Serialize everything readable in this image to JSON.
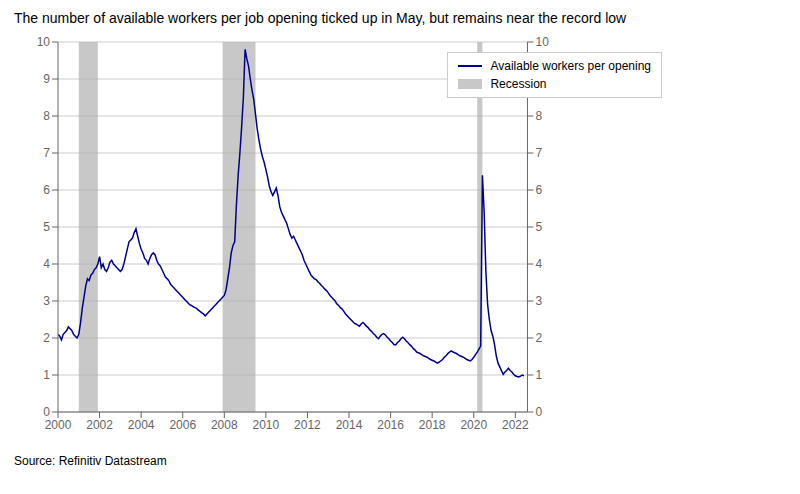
{
  "chart_data": {
    "type": "line",
    "title": "The number of available workers per job opening ticked up in May, but remains near the record low",
    "annotations": [
      "Source: Refinitiv Datastream"
    ],
    "x": [
      2000.0,
      2000.083,
      2000.167,
      2000.25,
      2000.333,
      2000.417,
      2000.5,
      2000.583,
      2000.667,
      2000.75,
      2000.833,
      2000.917,
      2001.0,
      2001.083,
      2001.167,
      2001.25,
      2001.333,
      2001.417,
      2001.5,
      2001.583,
      2001.667,
      2001.75,
      2001.833,
      2001.917,
      2002.0,
      2002.083,
      2002.167,
      2002.25,
      2002.333,
      2002.417,
      2002.5,
      2002.583,
      2002.667,
      2002.75,
      2002.833,
      2002.917,
      2003.0,
      2003.083,
      2003.167,
      2003.25,
      2003.333,
      2003.417,
      2003.5,
      2003.583,
      2003.667,
      2003.75,
      2003.833,
      2003.917,
      2004.0,
      2004.083,
      2004.167,
      2004.25,
      2004.333,
      2004.417,
      2004.5,
      2004.583,
      2004.667,
      2004.75,
      2004.833,
      2004.917,
      2005.0,
      2005.083,
      2005.167,
      2005.25,
      2005.333,
      2005.417,
      2005.5,
      2005.583,
      2005.667,
      2005.75,
      2005.833,
      2005.917,
      2006.0,
      2006.083,
      2006.167,
      2006.25,
      2006.333,
      2006.417,
      2006.5,
      2006.583,
      2006.667,
      2006.75,
      2006.833,
      2006.917,
      2007.0,
      2007.083,
      2007.167,
      2007.25,
      2007.333,
      2007.417,
      2007.5,
      2007.583,
      2007.667,
      2007.75,
      2007.833,
      2007.917,
      2008.0,
      2008.083,
      2008.167,
      2008.25,
      2008.333,
      2008.417,
      2008.5,
      2008.583,
      2008.667,
      2008.75,
      2008.833,
      2008.917,
      2009.0,
      2009.083,
      2009.167,
      2009.25,
      2009.333,
      2009.417,
      2009.5,
      2009.583,
      2009.667,
      2009.75,
      2009.833,
      2009.917,
      2010.0,
      2010.083,
      2010.167,
      2010.25,
      2010.333,
      2010.417,
      2010.5,
      2010.583,
      2010.667,
      2010.75,
      2010.833,
      2010.917,
      2011.0,
      2011.083,
      2011.167,
      2011.25,
      2011.333,
      2011.417,
      2011.5,
      2011.583,
      2011.667,
      2011.75,
      2011.833,
      2011.917,
      2012.0,
      2012.083,
      2012.167,
      2012.25,
      2012.333,
      2012.417,
      2012.5,
      2012.583,
      2012.667,
      2012.75,
      2012.833,
      2012.917,
      2013.0,
      2013.083,
      2013.167,
      2013.25,
      2013.333,
      2013.417,
      2013.5,
      2013.583,
      2013.667,
      2013.75,
      2013.833,
      2013.917,
      2014.0,
      2014.083,
      2014.167,
      2014.25,
      2014.333,
      2014.417,
      2014.5,
      2014.583,
      2014.667,
      2014.75,
      2014.833,
      2014.917,
      2015.0,
      2015.083,
      2015.167,
      2015.25,
      2015.333,
      2015.417,
      2015.5,
      2015.583,
      2015.667,
      2015.75,
      2015.833,
      2015.917,
      2016.0,
      2016.083,
      2016.167,
      2016.25,
      2016.333,
      2016.417,
      2016.5,
      2016.583,
      2016.667,
      2016.75,
      2016.833,
      2016.917,
      2017.0,
      2017.083,
      2017.167,
      2017.25,
      2017.333,
      2017.417,
      2017.5,
      2017.583,
      2017.667,
      2017.75,
      2017.833,
      2017.917,
      2018.0,
      2018.083,
      2018.167,
      2018.25,
      2018.333,
      2018.417,
      2018.5,
      2018.583,
      2018.667,
      2018.75,
      2018.833,
      2018.917,
      2019.0,
      2019.083,
      2019.167,
      2019.25,
      2019.333,
      2019.417,
      2019.5,
      2019.583,
      2019.667,
      2019.75,
      2019.833,
      2019.917,
      2020.0,
      2020.083,
      2020.167,
      2020.25,
      2020.333,
      2020.417,
      2020.5,
      2020.583,
      2020.667,
      2020.75,
      2020.833,
      2020.917,
      2021.0,
      2021.083,
      2021.167,
      2021.25,
      2021.333,
      2021.417,
      2021.5,
      2021.583,
      2021.667,
      2021.75,
      2021.833,
      2021.917,
      2022.0,
      2022.083,
      2022.167,
      2022.25,
      2022.333,
      2022.417
    ],
    "series": [
      {
        "name": "Available workers per opening",
        "color": "#00008B",
        "values": [
          2.1,
          2.05,
          1.95,
          2.1,
          2.15,
          2.2,
          2.3,
          2.25,
          2.2,
          2.1,
          2.05,
          2.0,
          2.1,
          2.4,
          2.8,
          3.1,
          3.4,
          3.6,
          3.55,
          3.7,
          3.75,
          3.85,
          3.9,
          4.0,
          4.2,
          3.9,
          4.0,
          3.85,
          3.8,
          3.9,
          4.05,
          4.1,
          4.0,
          3.95,
          3.9,
          3.85,
          3.8,
          3.85,
          4.0,
          4.2,
          4.4,
          4.6,
          4.65,
          4.7,
          4.85,
          4.95,
          4.75,
          4.55,
          4.4,
          4.3,
          4.15,
          4.1,
          4.0,
          4.15,
          4.25,
          4.3,
          4.25,
          4.1,
          4.0,
          3.95,
          3.85,
          3.75,
          3.65,
          3.6,
          3.55,
          3.45,
          3.4,
          3.35,
          3.3,
          3.25,
          3.2,
          3.15,
          3.1,
          3.05,
          3.0,
          2.95,
          2.9,
          2.88,
          2.85,
          2.82,
          2.8,
          2.75,
          2.72,
          2.68,
          2.65,
          2.6,
          2.65,
          2.7,
          2.75,
          2.8,
          2.85,
          2.9,
          2.95,
          3.0,
          3.05,
          3.1,
          3.15,
          3.3,
          3.6,
          3.9,
          4.3,
          4.5,
          4.6,
          5.6,
          6.4,
          7.0,
          7.7,
          8.5,
          9.8,
          9.55,
          9.35,
          9.0,
          8.7,
          8.45,
          8.05,
          7.65,
          7.35,
          7.1,
          6.9,
          6.75,
          6.55,
          6.35,
          6.1,
          5.95,
          5.85,
          5.95,
          6.05,
          5.85,
          5.55,
          5.4,
          5.3,
          5.2,
          5.1,
          4.95,
          4.8,
          4.7,
          4.75,
          4.65,
          4.55,
          4.45,
          4.35,
          4.25,
          4.1,
          4.0,
          3.9,
          3.8,
          3.7,
          3.65,
          3.6,
          3.58,
          3.52,
          3.48,
          3.42,
          3.38,
          3.32,
          3.28,
          3.22,
          3.15,
          3.1,
          3.05,
          3.0,
          2.92,
          2.88,
          2.82,
          2.78,
          2.72,
          2.65,
          2.6,
          2.55,
          2.5,
          2.45,
          2.4,
          2.38,
          2.35,
          2.32,
          2.38,
          2.42,
          2.38,
          2.32,
          2.28,
          2.22,
          2.18,
          2.12,
          2.08,
          2.02,
          1.98,
          2.05,
          2.1,
          2.12,
          2.08,
          2.02,
          1.98,
          1.92,
          1.88,
          1.82,
          1.82,
          1.88,
          1.92,
          1.98,
          2.02,
          1.98,
          1.92,
          1.88,
          1.82,
          1.78,
          1.72,
          1.68,
          1.62,
          1.6,
          1.58,
          1.55,
          1.52,
          1.5,
          1.48,
          1.45,
          1.42,
          1.4,
          1.38,
          1.35,
          1.32,
          1.35,
          1.38,
          1.42,
          1.48,
          1.52,
          1.58,
          1.62,
          1.65,
          1.62,
          1.6,
          1.58,
          1.55,
          1.52,
          1.5,
          1.48,
          1.45,
          1.42,
          1.4,
          1.38,
          1.42,
          1.48,
          1.55,
          1.62,
          1.7,
          1.78,
          6.4,
          5.4,
          3.8,
          2.9,
          2.5,
          2.2,
          2.05,
          1.82,
          1.52,
          1.32,
          1.22,
          1.12,
          1.02,
          1.08,
          1.12,
          1.18,
          1.12,
          1.08,
          1.02,
          0.98,
          0.96,
          0.95,
          0.97,
          1.0,
          0.98
        ]
      }
    ],
    "shaded": {
      "name": "Recession",
      "color": "#B0B0B0",
      "ranges": [
        [
          2001.0,
          2001.917
        ],
        [
          2007.917,
          2009.5
        ],
        [
          2020.167,
          2020.417
        ]
      ]
    },
    "xlim": [
      2000.0,
      2022.583
    ],
    "xticks": [
      2000,
      2002,
      2004,
      2006,
      2008,
      2010,
      2012,
      2014,
      2016,
      2018,
      2020,
      2022
    ],
    "ylim": [
      0,
      10
    ],
    "yticks": [
      0,
      1,
      2,
      3,
      4,
      5,
      6,
      7,
      8,
      9,
      10
    ],
    "y2lim": [
      0,
      10
    ],
    "y2ticks": [
      0,
      1,
      2,
      3,
      4,
      5,
      6,
      7,
      8,
      9,
      10
    ],
    "grid": true,
    "legend": "upper right"
  }
}
